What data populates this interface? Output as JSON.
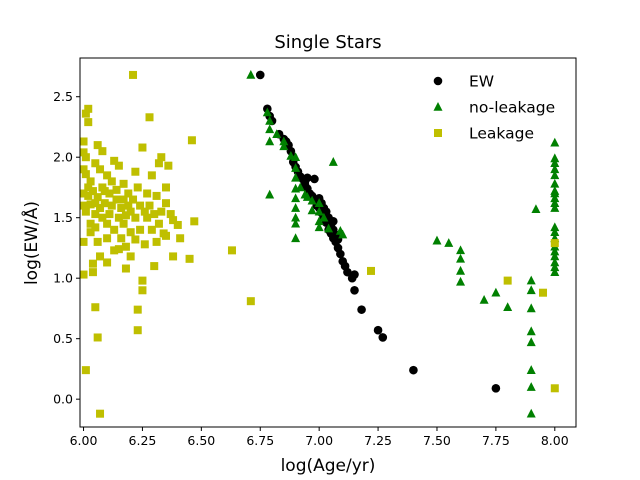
{
  "chart_data": {
    "type": "scatter",
    "title": "Single Stars",
    "xlabel": "log(Age/yr)",
    "ylabel": "log(EW/Å)",
    "xlim": [
      5.985,
      8.09
    ],
    "ylim": [
      -0.23,
      2.82
    ],
    "xticks": [
      "6.00",
      "6.25",
      "6.50",
      "6.75",
      "7.00",
      "7.25",
      "7.50",
      "7.75",
      "8.00"
    ],
    "yticks": [
      "0.0",
      "0.5",
      "1.0",
      "1.5",
      "2.0",
      "2.5"
    ],
    "legend_position": "top-right",
    "series": [
      {
        "name": "EW",
        "marker": "circle",
        "color": "#000000",
        "points": [
          [
            6.75,
            2.68
          ],
          [
            6.78,
            2.4
          ],
          [
            6.79,
            2.34
          ],
          [
            6.8,
            2.3
          ],
          [
            6.83,
            2.19
          ],
          [
            6.85,
            2.15
          ],
          [
            6.86,
            2.13
          ],
          [
            6.87,
            2.1
          ],
          [
            6.88,
            2.05
          ],
          [
            6.89,
            2.0
          ],
          [
            6.89,
            1.96
          ],
          [
            6.9,
            1.92
          ],
          [
            6.91,
            1.88
          ],
          [
            6.92,
            1.84
          ],
          [
            6.93,
            1.82
          ],
          [
            6.94,
            1.8
          ],
          [
            6.94,
            1.77
          ],
          [
            6.95,
            1.83
          ],
          [
            6.95,
            1.74
          ],
          [
            6.96,
            1.7
          ],
          [
            6.97,
            1.68
          ],
          [
            6.98,
            1.82
          ],
          [
            6.98,
            1.64
          ],
          [
            6.99,
            1.6
          ],
          [
            7.0,
            1.58
          ],
          [
            7.0,
            1.66
          ],
          [
            7.01,
            1.54
          ],
          [
            7.01,
            1.62
          ],
          [
            7.02,
            1.5
          ],
          [
            7.02,
            1.58
          ],
          [
            7.03,
            1.46
          ],
          [
            7.03,
            1.55
          ],
          [
            7.04,
            1.4
          ],
          [
            7.04,
            1.5
          ],
          [
            7.05,
            1.37
          ],
          [
            7.05,
            1.44
          ],
          [
            7.06,
            1.33
          ],
          [
            7.06,
            1.47
          ],
          [
            7.06,
            1.4
          ],
          [
            7.07,
            1.3
          ],
          [
            7.07,
            1.36
          ],
          [
            7.08,
            1.25
          ],
          [
            7.08,
            1.32
          ],
          [
            7.09,
            1.2
          ],
          [
            7.1,
            1.14
          ],
          [
            7.11,
            1.1
          ],
          [
            7.12,
            1.05
          ],
          [
            7.14,
            1.0
          ],
          [
            7.15,
            0.9
          ],
          [
            7.15,
            1.03
          ],
          [
            7.18,
            0.74
          ],
          [
            7.25,
            0.57
          ],
          [
            7.27,
            0.51
          ],
          [
            7.4,
            0.24
          ],
          [
            7.75,
            0.09
          ]
        ]
      },
      {
        "name": "no-leakage",
        "marker": "triangle",
        "color": "#008000",
        "points": [
          [
            6.71,
            2.68
          ],
          [
            6.78,
            2.37
          ],
          [
            6.79,
            2.3
          ],
          [
            6.79,
            2.23
          ],
          [
            6.79,
            2.13
          ],
          [
            6.79,
            1.69
          ],
          [
            6.82,
            2.19
          ],
          [
            6.85,
            2.13
          ],
          [
            6.85,
            2.09
          ],
          [
            6.88,
            2.01
          ],
          [
            6.9,
            1.91
          ],
          [
            6.9,
            2.0
          ],
          [
            6.9,
            1.83
          ],
          [
            6.9,
            1.74
          ],
          [
            6.9,
            1.66
          ],
          [
            6.9,
            1.58
          ],
          [
            6.9,
            1.5
          ],
          [
            6.9,
            1.45
          ],
          [
            6.9,
            1.33
          ],
          [
            6.92,
            1.75
          ],
          [
            6.94,
            1.69
          ],
          [
            6.95,
            1.67
          ],
          [
            6.97,
            1.64
          ],
          [
            6.97,
            1.56
          ],
          [
            7.0,
            1.62
          ],
          [
            7.0,
            1.55
          ],
          [
            7.0,
            1.47
          ],
          [
            7.0,
            1.42
          ],
          [
            7.02,
            1.5
          ],
          [
            7.04,
            1.41
          ],
          [
            7.06,
            1.96
          ],
          [
            7.09,
            1.39
          ],
          [
            7.1,
            1.36
          ],
          [
            7.5,
            1.31
          ],
          [
            7.55,
            1.29
          ],
          [
            7.6,
            1.23
          ],
          [
            7.6,
            1.16
          ],
          [
            7.6,
            1.06
          ],
          [
            7.6,
            0.97
          ],
          [
            7.7,
            0.82
          ],
          [
            7.75,
            0.88
          ],
          [
            7.8,
            0.76
          ],
          [
            7.9,
            0.98
          ],
          [
            7.9,
            0.9
          ],
          [
            7.9,
            0.75
          ],
          [
            7.9,
            0.56
          ],
          [
            7.9,
            0.47
          ],
          [
            7.9,
            0.24
          ],
          [
            7.9,
            0.1
          ],
          [
            7.9,
            -0.12
          ],
          [
            7.92,
            1.57
          ],
          [
            8.0,
            2.12
          ],
          [
            8.0,
            1.99
          ],
          [
            8.0,
            1.95
          ],
          [
            8.0,
            1.9
          ],
          [
            8.0,
            1.85
          ],
          [
            8.0,
            1.78
          ],
          [
            8.0,
            1.72
          ],
          [
            8.0,
            1.7
          ],
          [
            8.0,
            1.66
          ],
          [
            8.0,
            1.62
          ],
          [
            8.0,
            1.58
          ],
          [
            8.0,
            1.42
          ],
          [
            8.0,
            1.38
          ],
          [
            8.0,
            1.33
          ],
          [
            8.0,
            1.26
          ],
          [
            8.0,
            1.22
          ],
          [
            8.0,
            1.18
          ],
          [
            8.0,
            1.13
          ],
          [
            8.0,
            1.09
          ],
          [
            8.0,
            1.05
          ]
        ]
      },
      {
        "name": "Leakage",
        "marker": "square",
        "color": "#bfbf00",
        "points": [
          [
            6.0,
            2.13
          ],
          [
            6.0,
            2.04
          ],
          [
            6.01,
            2.0
          ],
          [
            6.0,
            1.9
          ],
          [
            6.01,
            1.86
          ],
          [
            6.0,
            1.7
          ],
          [
            6.0,
            1.6
          ],
          [
            6.01,
            1.55
          ],
          [
            6.0,
            1.3
          ],
          [
            6.0,
            1.03
          ],
          [
            6.01,
            0.24
          ],
          [
            6.01,
            2.36
          ],
          [
            6.02,
            2.4
          ],
          [
            6.02,
            2.29
          ],
          [
            6.02,
            1.75
          ],
          [
            6.02,
            1.68
          ],
          [
            6.03,
            1.8
          ],
          [
            6.03,
            1.61
          ],
          [
            6.03,
            1.45
          ],
          [
            6.03,
            1.38
          ],
          [
            6.04,
            1.72
          ],
          [
            6.04,
            1.12
          ],
          [
            6.04,
            1.05
          ],
          [
            6.05,
            1.95
          ],
          [
            6.05,
            1.62
          ],
          [
            6.05,
            1.53
          ],
          [
            6.05,
            1.42
          ],
          [
            6.05,
            0.76
          ],
          [
            6.06,
            2.1
          ],
          [
            6.06,
            1.67
          ],
          [
            6.06,
            1.3
          ],
          [
            6.06,
            0.51
          ],
          [
            6.07,
            1.9
          ],
          [
            6.07,
            1.58
          ],
          [
            6.07,
            1.18
          ],
          [
            6.07,
            -0.12
          ],
          [
            6.08,
            2.05
          ],
          [
            6.08,
            1.75
          ],
          [
            6.08,
            1.5
          ],
          [
            6.09,
            1.72
          ],
          [
            6.09,
            1.62
          ],
          [
            6.1,
            1.85
          ],
          [
            6.1,
            1.45
          ],
          [
            6.1,
            1.33
          ],
          [
            6.1,
            1.13
          ],
          [
            6.11,
            1.7
          ],
          [
            6.11,
            1.53
          ],
          [
            6.12,
            1.8
          ],
          [
            6.12,
            1.6
          ],
          [
            6.13,
            1.97
          ],
          [
            6.13,
            1.4
          ],
          [
            6.13,
            1.23
          ],
          [
            6.14,
            1.65
          ],
          [
            6.14,
            1.73
          ],
          [
            6.15,
            1.5
          ],
          [
            6.15,
            1.93
          ],
          [
            6.15,
            1.24
          ],
          [
            6.16,
            1.58
          ],
          [
            6.16,
            1.33
          ],
          [
            6.17,
            1.65
          ],
          [
            6.17,
            1.78
          ],
          [
            6.17,
            1.45
          ],
          [
            6.18,
            1.52
          ],
          [
            6.18,
            1.26
          ],
          [
            6.18,
            1.08
          ],
          [
            6.19,
            1.6
          ],
          [
            6.19,
            1.7
          ],
          [
            6.2,
            1.55
          ],
          [
            6.2,
            1.38
          ],
          [
            6.2,
            1.18
          ],
          [
            6.21,
            2.68
          ],
          [
            6.21,
            1.65
          ],
          [
            6.22,
            1.88
          ],
          [
            6.22,
            1.5
          ],
          [
            6.22,
            1.32
          ],
          [
            6.23,
            1.75
          ],
          [
            6.23,
            0.74
          ],
          [
            6.23,
            0.57
          ],
          [
            6.24,
            1.6
          ],
          [
            6.24,
            1.4
          ],
          [
            6.25,
            2.08
          ],
          [
            6.25,
            0.9
          ],
          [
            6.25,
            0.98
          ],
          [
            6.26,
            1.55
          ],
          [
            6.26,
            1.28
          ],
          [
            6.27,
            1.7
          ],
          [
            6.27,
            1.5
          ],
          [
            6.28,
            2.33
          ],
          [
            6.28,
            1.6
          ],
          [
            6.29,
            1.85
          ],
          [
            6.29,
            1.4
          ],
          [
            6.3,
            1.53
          ],
          [
            6.3,
            1.1
          ],
          [
            6.31,
            1.3
          ],
          [
            6.31,
            1.68
          ],
          [
            6.32,
            1.95
          ],
          [
            6.32,
            1.45
          ],
          [
            6.33,
            2.0
          ],
          [
            6.33,
            1.55
          ],
          [
            6.34,
            1.37
          ],
          [
            6.35,
            1.75
          ],
          [
            6.35,
            1.62
          ],
          [
            6.35,
            1.35
          ],
          [
            6.36,
            1.93
          ],
          [
            6.37,
            1.53
          ],
          [
            6.38,
            1.48
          ],
          [
            6.38,
            1.18
          ],
          [
            6.4,
            1.44
          ],
          [
            6.41,
            1.33
          ],
          [
            6.45,
            1.16
          ],
          [
            6.46,
            2.14
          ],
          [
            6.47,
            1.47
          ],
          [
            6.63,
            1.23
          ],
          [
            6.71,
            0.81
          ],
          [
            7.22,
            1.06
          ],
          [
            7.8,
            0.98
          ],
          [
            7.95,
            0.88
          ],
          [
            8.0,
            1.29
          ],
          [
            8.0,
            0.09
          ]
        ]
      }
    ]
  }
}
